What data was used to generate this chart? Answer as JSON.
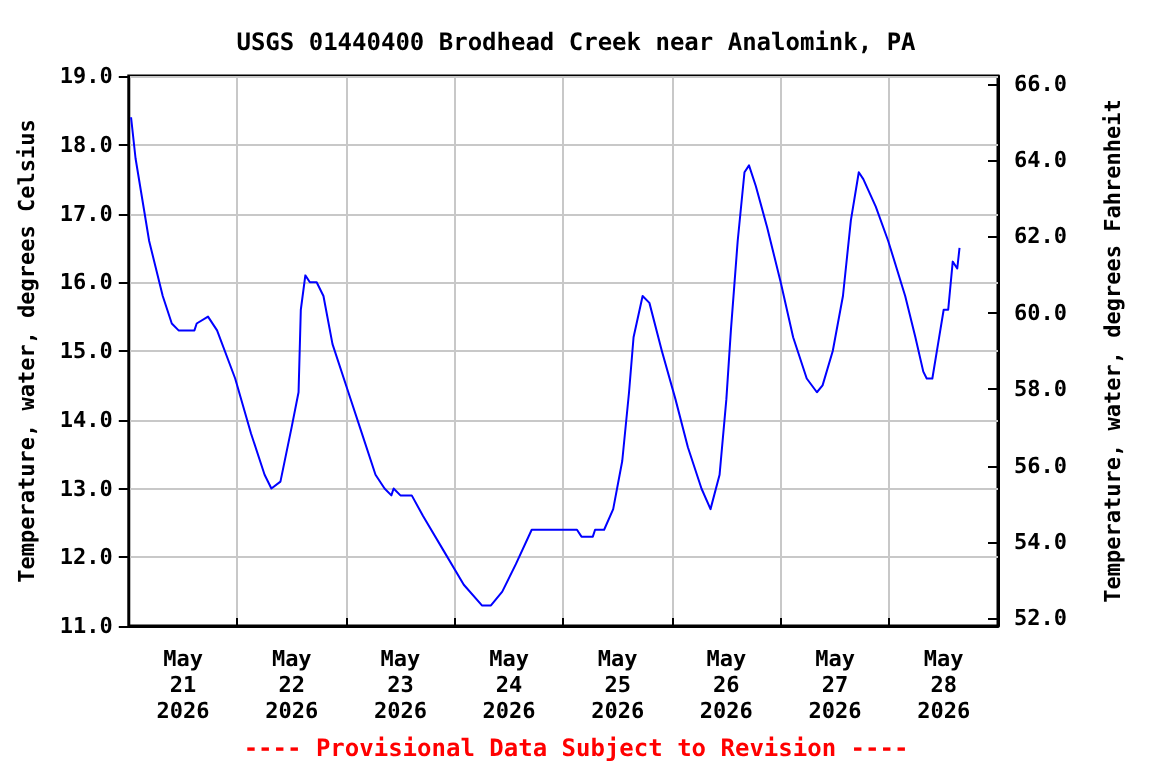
{
  "chart_data": {
    "type": "line",
    "title": "USGS 01440400 Brodhead Creek near Analomink, PA",
    "ylabel": "Temperature, water, degrees Celsius",
    "y2label": "Temperature, water, degrees Fahrenheit",
    "annotations": [
      "---- Provisional Data Subject to Revision ----"
    ],
    "xlim": [
      "2026-05-21T00:00",
      "2026-05-29T00:00"
    ],
    "xticks": [
      {
        "value": "2026-05-21T12:00",
        "label": "May\n21\n2026"
      },
      {
        "value": "2026-05-22T00:00",
        "label": null
      },
      {
        "value": "2026-05-22T12:00",
        "label": "May\n22\n2026"
      },
      {
        "value": "2026-05-23T00:00",
        "label": null
      },
      {
        "value": "2026-05-23T12:00",
        "label": "May\n23\n2026"
      },
      {
        "value": "2026-05-24T00:00",
        "label": null
      },
      {
        "value": "2026-05-24T12:00",
        "label": "May\n24\n2026"
      },
      {
        "value": "2026-05-25T00:00",
        "label": null
      },
      {
        "value": "2026-05-25T12:00",
        "label": "May\n25\n2026"
      },
      {
        "value": "2026-05-26T00:00",
        "label": null
      },
      {
        "value": "2026-05-26T12:00",
        "label": "May\n26\n2026"
      },
      {
        "value": "2026-05-27T00:00",
        "label": null
      },
      {
        "value": "2026-05-27T12:00",
        "label": "May\n27\n2026"
      },
      {
        "value": "2026-05-28T00:00",
        "label": null
      },
      {
        "value": "2026-05-28T12:00",
        "label": "May\n28\n2026"
      }
    ],
    "ylim": [
      11,
      19
    ],
    "yticks": [
      {
        "value": 11,
        "label": "11.0"
      },
      {
        "value": 12,
        "label": "12.0"
      },
      {
        "value": 13,
        "label": "13.0"
      },
      {
        "value": 14,
        "label": "14.0"
      },
      {
        "value": 15,
        "label": "15.0"
      },
      {
        "value": 16,
        "label": "16.0"
      },
      {
        "value": 17,
        "label": "17.0"
      },
      {
        "value": 18,
        "label": "18.0"
      },
      {
        "value": 19,
        "label": "19.0"
      }
    ],
    "y2lim": [
      51.8,
      66.2
    ],
    "y2ticks": [
      {
        "value": 52,
        "label": "52.0"
      },
      {
        "value": 54,
        "label": "54.0"
      },
      {
        "value": 56,
        "label": "56.0"
      },
      {
        "value": 58,
        "label": "58.0"
      },
      {
        "value": 60,
        "label": "60.0"
      },
      {
        "value": 62,
        "label": "62.0"
      },
      {
        "value": 64,
        "label": "64.0"
      },
      {
        "value": 66,
        "label": "66.0"
      }
    ],
    "grid": true,
    "marker": "none",
    "line_style": "solid",
    "series": [
      {
        "color": "#0000ff",
        "x": [
          "2026-05-21T00:30",
          "2026-05-21T01:30",
          "2026-05-21T04:30",
          "2026-05-21T07:30",
          "2026-05-21T09:30",
          "2026-05-21T11:00",
          "2026-05-21T14:30",
          "2026-05-21T15:00",
          "2026-05-21T17:30",
          "2026-05-21T19:30",
          "2026-05-21T23:30",
          "2026-05-22T03:00",
          "2026-05-22T06:00",
          "2026-05-22T07:30",
          "2026-05-22T09:30",
          "2026-05-22T12:00",
          "2026-05-22T13:30",
          "2026-05-22T14:00",
          "2026-05-22T15:00",
          "2026-05-22T16:00",
          "2026-05-22T17:30",
          "2026-05-22T19:00",
          "2026-05-22T21:00",
          "2026-05-23T00:30",
          "2026-05-23T03:00",
          "2026-05-23T06:30",
          "2026-05-23T08:30",
          "2026-05-23T10:00",
          "2026-05-23T10:30",
          "2026-05-23T12:00",
          "2026-05-23T14:30",
          "2026-05-23T17:00",
          "2026-05-23T21:30",
          "2026-05-24T02:00",
          "2026-05-24T06:00",
          "2026-05-24T08:00",
          "2026-05-24T10:30",
          "2026-05-24T13:30",
          "2026-05-24T17:00",
          "2026-05-25T03:00",
          "2026-05-25T04:00",
          "2026-05-25T06:30",
          "2026-05-25T07:00",
          "2026-05-25T09:00",
          "2026-05-25T11:00",
          "2026-05-25T13:00",
          "2026-05-25T14:30",
          "2026-05-25T15:30",
          "2026-05-25T17:30",
          "2026-05-25T19:00",
          "2026-05-25T21:45",
          "2026-05-26T00:45",
          "2026-05-26T03:30",
          "2026-05-26T06:30",
          "2026-05-26T08:30",
          "2026-05-26T10:30",
          "2026-05-26T12:00",
          "2026-05-26T13:00",
          "2026-05-26T14:30",
          "2026-05-26T16:00",
          "2026-05-26T17:00",
          "2026-05-26T18:30",
          "2026-05-26T21:00",
          "2026-05-27T00:00",
          "2026-05-27T02:45",
          "2026-05-27T05:45",
          "2026-05-27T08:00",
          "2026-05-27T09:15",
          "2026-05-27T11:30",
          "2026-05-27T13:45",
          "2026-05-27T15:30",
          "2026-05-27T17:15",
          "2026-05-27T18:15",
          "2026-05-27T21:00",
          "2026-05-27T23:45",
          "2026-05-28T03:30",
          "2026-05-28T05:45",
          "2026-05-28T07:30",
          "2026-05-28T08:15",
          "2026-05-28T09:30",
          "2026-05-28T10:45",
          "2026-05-28T12:00",
          "2026-05-28T13:00",
          "2026-05-28T14:00",
          "2026-05-28T15:00",
          "2026-05-28T15:30"
        ],
        "values": [
          18.4,
          17.8,
          16.6,
          15.8,
          15.4,
          15.3,
          15.3,
          15.4,
          15.5,
          15.3,
          14.6,
          13.8,
          13.2,
          13.0,
          13.1,
          13.9,
          14.4,
          15.6,
          16.1,
          16.0,
          16.0,
          15.8,
          15.1,
          14.4,
          13.9,
          13.2,
          13.0,
          12.9,
          13.0,
          12.9,
          12.9,
          12.6,
          12.1,
          11.6,
          11.3,
          11.3,
          11.5,
          11.9,
          12.4,
          12.4,
          12.3,
          12.3,
          12.4,
          12.4,
          12.7,
          13.4,
          14.4,
          15.2,
          15.8,
          15.7,
          15.0,
          14.3,
          13.6,
          13.0,
          12.7,
          13.2,
          14.3,
          15.3,
          16.6,
          17.6,
          17.7,
          17.4,
          16.8,
          16.0,
          15.2,
          14.6,
          14.4,
          14.5,
          15.0,
          15.8,
          16.9,
          17.6,
          17.5,
          17.1,
          16.6,
          15.8,
          15.2,
          14.7,
          14.6,
          14.6,
          15.1,
          15.6,
          15.6,
          16.3,
          16.2,
          16.5
        ]
      }
    ]
  }
}
